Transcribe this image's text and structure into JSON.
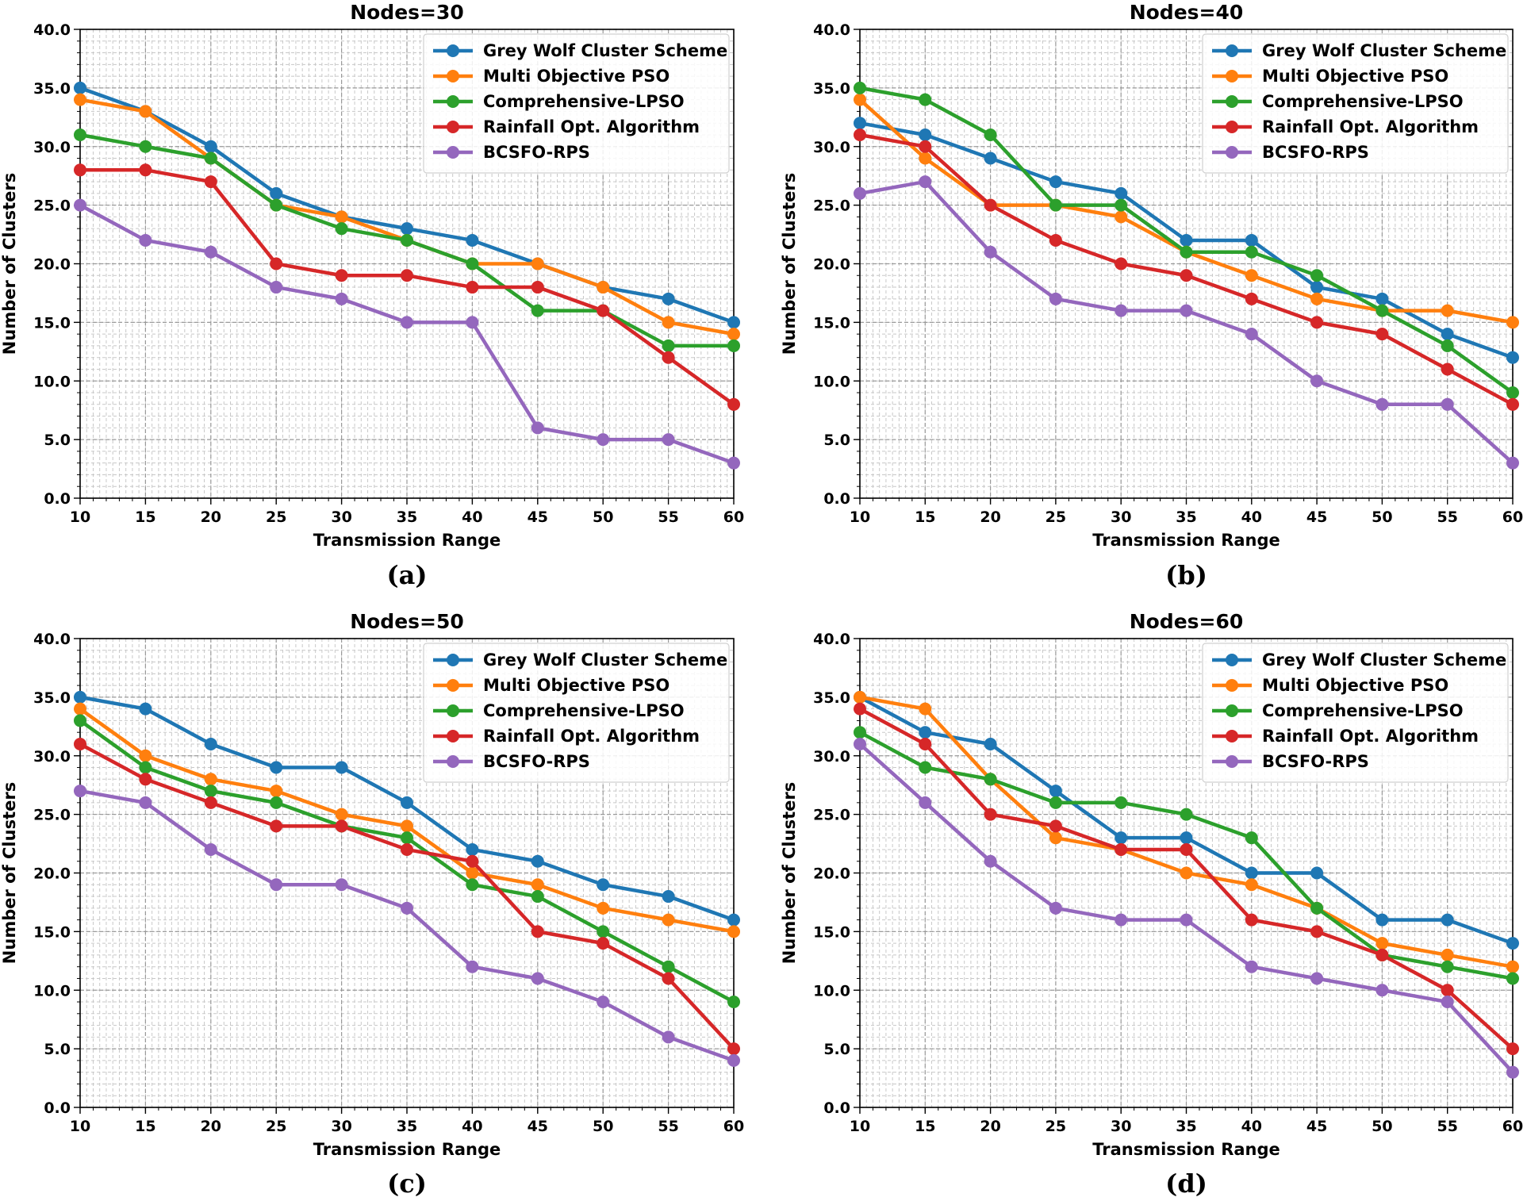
{
  "chart_data": [
    {
      "type": "line",
      "title": "Nodes=30",
      "caption": "(a)",
      "xlabel": "Transmission Range",
      "ylabel": "Number of Clusters",
      "x": [
        10,
        15,
        20,
        25,
        30,
        35,
        40,
        45,
        50,
        55,
        60
      ],
      "xlim": [
        10,
        60
      ],
      "ylim": [
        0,
        40
      ],
      "yticks": [
        "0.0",
        "5.0",
        "10.0",
        "15.0",
        "20.0",
        "25.0",
        "30.0",
        "35.0",
        "40.0"
      ],
      "xticks": [
        "10",
        "15",
        "20",
        "25",
        "30",
        "35",
        "40",
        "45",
        "50",
        "55",
        "60"
      ],
      "grid": true,
      "legend_position": "top-right",
      "series": [
        {
          "name": "Grey Wolf Cluster Scheme",
          "color": "#1f77b4",
          "values": [
            35,
            33,
            30,
            26,
            24,
            23,
            22,
            20,
            18,
            17,
            15
          ]
        },
        {
          "name": "Multi Objective PSO",
          "color": "#ff7f0e",
          "values": [
            34,
            33,
            29,
            25,
            24,
            22,
            20,
            20,
            18,
            15,
            14
          ]
        },
        {
          "name": "Comprehensive-LPSO",
          "color": "#2ca02c",
          "values": [
            31,
            30,
            29,
            25,
            23,
            22,
            20,
            16,
            16,
            13,
            13
          ]
        },
        {
          "name": "Rainfall Opt. Algorithm",
          "color": "#d62728",
          "values": [
            28,
            28,
            27,
            20,
            19,
            19,
            18,
            18,
            16,
            12,
            8
          ]
        },
        {
          "name": "BCSFO-RPS",
          "color": "#9467bd",
          "values": [
            25,
            22,
            21,
            18,
            17,
            15,
            15,
            6,
            5,
            5,
            3
          ]
        }
      ]
    },
    {
      "type": "line",
      "title": "Nodes=40",
      "caption": "(b)",
      "xlabel": "Transmission Range",
      "ylabel": "Number of Clusters",
      "x": [
        10,
        15,
        20,
        25,
        30,
        35,
        40,
        45,
        50,
        55,
        60
      ],
      "xlim": [
        10,
        60
      ],
      "ylim": [
        0,
        40
      ],
      "yticks": [
        "0.0",
        "5.0",
        "10.0",
        "15.0",
        "20.0",
        "25.0",
        "30.0",
        "35.0",
        "40.0"
      ],
      "xticks": [
        "10",
        "15",
        "20",
        "25",
        "30",
        "35",
        "40",
        "45",
        "50",
        "55",
        "60"
      ],
      "grid": true,
      "legend_position": "top-right",
      "series": [
        {
          "name": "Grey Wolf Cluster Scheme",
          "color": "#1f77b4",
          "values": [
            32,
            31,
            29,
            27,
            26,
            22,
            22,
            18,
            17,
            14,
            12
          ]
        },
        {
          "name": "Multi Objective PSO",
          "color": "#ff7f0e",
          "values": [
            34,
            29,
            25,
            25,
            24,
            21,
            19,
            17,
            16,
            16,
            15
          ]
        },
        {
          "name": "Comprehensive-LPSO",
          "color": "#2ca02c",
          "values": [
            35,
            34,
            31,
            25,
            25,
            21,
            21,
            19,
            16,
            13,
            9
          ]
        },
        {
          "name": "Rainfall Opt. Algorithm",
          "color": "#d62728",
          "values": [
            31,
            30,
            25,
            22,
            20,
            19,
            17,
            15,
            14,
            11,
            8
          ]
        },
        {
          "name": "BCSFO-RPS",
          "color": "#9467bd",
          "values": [
            26,
            27,
            21,
            17,
            16,
            16,
            14,
            10,
            8,
            8,
            3
          ]
        }
      ]
    },
    {
      "type": "line",
      "title": "Nodes=50",
      "caption": "(c)",
      "xlabel": "Transmission Range",
      "ylabel": "Number of Clusters",
      "x": [
        10,
        15,
        20,
        25,
        30,
        35,
        40,
        45,
        50,
        55,
        60
      ],
      "xlim": [
        10,
        60
      ],
      "ylim": [
        0,
        40
      ],
      "yticks": [
        "0.0",
        "5.0",
        "10.0",
        "15.0",
        "20.0",
        "25.0",
        "30.0",
        "35.0",
        "40.0"
      ],
      "xticks": [
        "10",
        "15",
        "20",
        "25",
        "30",
        "35",
        "40",
        "45",
        "50",
        "55",
        "60"
      ],
      "grid": true,
      "legend_position": "top-right",
      "series": [
        {
          "name": "Grey Wolf Cluster Scheme",
          "color": "#1f77b4",
          "values": [
            35,
            34,
            31,
            29,
            29,
            26,
            22,
            21,
            19,
            18,
            16
          ]
        },
        {
          "name": "Multi Objective PSO",
          "color": "#ff7f0e",
          "values": [
            34,
            30,
            28,
            27,
            25,
            24,
            20,
            19,
            17,
            16,
            15
          ]
        },
        {
          "name": "Comprehensive-LPSO",
          "color": "#2ca02c",
          "values": [
            33,
            29,
            27,
            26,
            24,
            23,
            19,
            18,
            15,
            12,
            9
          ]
        },
        {
          "name": "Rainfall Opt. Algorithm",
          "color": "#d62728",
          "values": [
            31,
            28,
            26,
            24,
            24,
            22,
            21,
            15,
            14,
            11,
            5
          ]
        },
        {
          "name": "BCSFO-RPS",
          "color": "#9467bd",
          "values": [
            27,
            26,
            22,
            19,
            19,
            17,
            12,
            11,
            9,
            6,
            4
          ]
        }
      ]
    },
    {
      "type": "line",
      "title": "Nodes=60",
      "caption": "(d)",
      "xlabel": "Transmission Range",
      "ylabel": "Number of Clusters",
      "x": [
        10,
        15,
        20,
        25,
        30,
        35,
        40,
        45,
        50,
        55,
        60
      ],
      "xlim": [
        10,
        60
      ],
      "ylim": [
        0,
        40
      ],
      "yticks": [
        "0.0",
        "5.0",
        "10.0",
        "15.0",
        "20.0",
        "25.0",
        "30.0",
        "35.0",
        "40.0"
      ],
      "xticks": [
        "10",
        "15",
        "20",
        "25",
        "30",
        "35",
        "40",
        "45",
        "50",
        "55",
        "60"
      ],
      "grid": true,
      "legend_position": "top-right",
      "series": [
        {
          "name": "Grey Wolf Cluster Scheme",
          "color": "#1f77b4",
          "values": [
            35,
            32,
            31,
            27,
            23,
            23,
            20,
            20,
            16,
            16,
            14
          ]
        },
        {
          "name": "Multi Objective PSO",
          "color": "#ff7f0e",
          "values": [
            35,
            34,
            28,
            23,
            22,
            20,
            19,
            17,
            14,
            13,
            12
          ]
        },
        {
          "name": "Comprehensive-LPSO",
          "color": "#2ca02c",
          "values": [
            32,
            29,
            28,
            26,
            26,
            25,
            23,
            17,
            13,
            12,
            11
          ]
        },
        {
          "name": "Rainfall Opt. Algorithm",
          "color": "#d62728",
          "values": [
            34,
            31,
            25,
            24,
            22,
            22,
            16,
            15,
            13,
            10,
            5
          ]
        },
        {
          "name": "BCSFO-RPS",
          "color": "#9467bd",
          "values": [
            31,
            26,
            21,
            17,
            16,
            16,
            12,
            11,
            10,
            9,
            3
          ]
        }
      ]
    }
  ]
}
